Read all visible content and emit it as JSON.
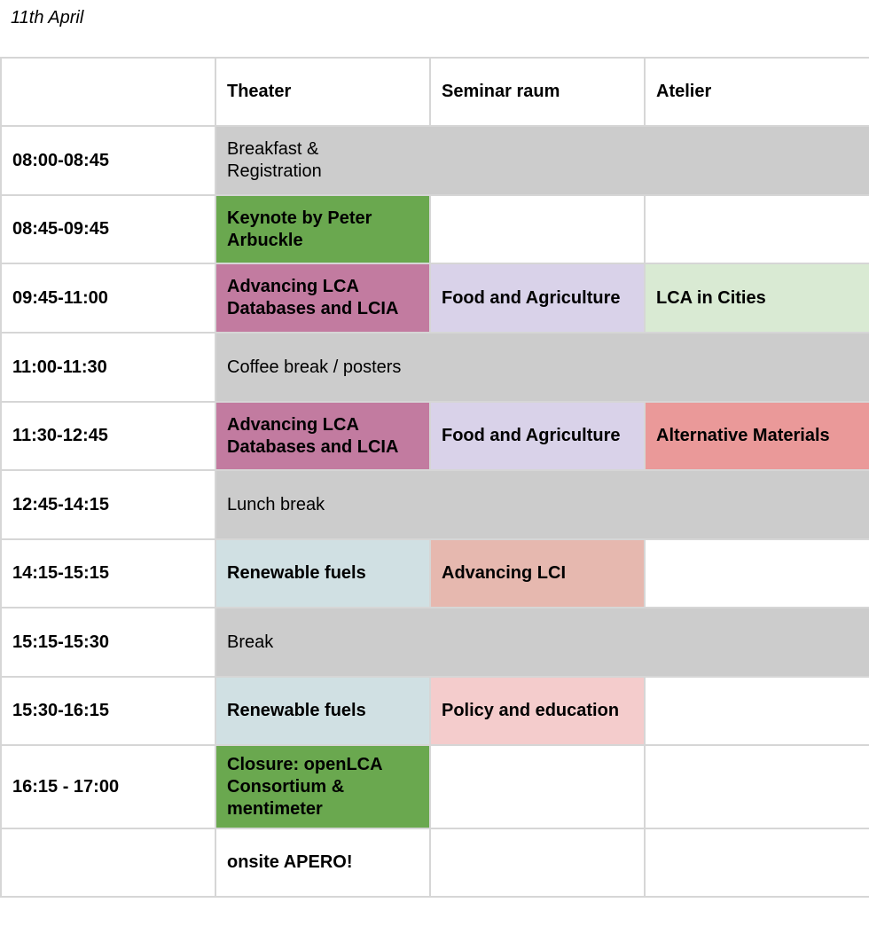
{
  "date": "11th April",
  "columns": [
    "",
    "Theater",
    "Seminar raum",
    "Atelier"
  ],
  "rows": [
    {
      "time": "08:00-08:45",
      "span": "Breakfast & Registration"
    },
    {
      "time": "08:45-09:45",
      "theater": "Keynote by Peter Arbuckle",
      "seminar": "",
      "atelier": ""
    },
    {
      "time": "09:45-11:00",
      "theater": "Advancing LCA Databases and LCIA",
      "seminar": "Food and Agriculture",
      "atelier": "LCA in Cities"
    },
    {
      "time": "11:00-11:30",
      "span": "Coffee break / posters"
    },
    {
      "time": "11:30-12:45",
      "theater": "Advancing LCA Databases and LCIA",
      "seminar": "Food and Agriculture",
      "atelier": "Alternative Materials"
    },
    {
      "time": "12:45-14:15",
      "span": "Lunch break"
    },
    {
      "time": "14:15-15:15",
      "theater": "Renewable fuels",
      "seminar": "Advancing LCI",
      "atelier": ""
    },
    {
      "time": "15:15-15:30",
      "span": "Break"
    },
    {
      "time": "15:30-16:15",
      "theater": "Renewable fuels",
      "seminar": "Policy and education",
      "atelier": ""
    },
    {
      "time": "16:15 - 17:00",
      "theater": "Closure: openLCA Consortium & mentimeter",
      "seminar": "",
      "atelier": ""
    },
    {
      "time": "",
      "theater": "onsite APERO!",
      "seminar": "",
      "atelier": ""
    }
  ],
  "colors": {
    "break_grey": "#cccccc",
    "keynote_green": "#6aa84f",
    "databases_magenta": "#c27ba0",
    "food_lavender": "#d9d2e9",
    "cities_lightgreen": "#d9ead3",
    "materials_red": "#ea9999",
    "fuels_blue": "#d0e0e3",
    "lci_salmon": "#e6b8af",
    "policy_pink": "#f4cccc",
    "grid_border": "#d6d6d6"
  }
}
